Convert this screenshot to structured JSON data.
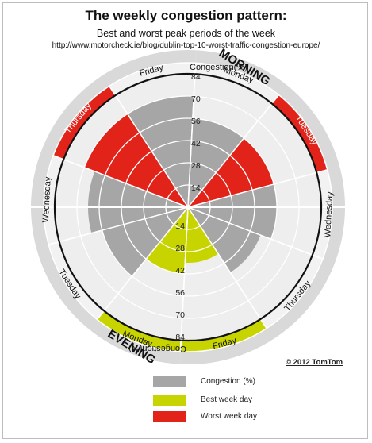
{
  "header": {
    "title": "The weekly congestion pattern:",
    "subtitle": "Best and worst peak periods of the week",
    "source": "http://www.motorcheck.ie/blog/dublin-top-10-worst-traffic-congestion-europe/"
  },
  "copyright": "© 2012 TomTom",
  "legend": [
    {
      "label": "Congestion (%)",
      "color": "#a6a6a6"
    },
    {
      "label": "Best week day",
      "color": "#c8d400"
    },
    {
      "label": "Worst week day",
      "color": "#e2231a"
    }
  ],
  "chart_data": {
    "type": "radial-bar",
    "ring_ticks": [
      14,
      28,
      42,
      56,
      70,
      84
    ],
    "rmax": 84,
    "axis_title": "Congestion(%)",
    "colors": {
      "grey": "#a6a6a6",
      "best": "#c8d400",
      "worst": "#e2231a",
      "frame": "#d9d9d9"
    },
    "series": [
      {
        "name": "MORNING",
        "days": [
          {
            "label": "Monday",
            "value": 56,
            "highlight": "none"
          },
          {
            "label": "Tuesday",
            "value": 56,
            "highlight": "worst"
          },
          {
            "label": "Wednesday",
            "value": 56,
            "highlight": "none"
          },
          {
            "label": "Thursday",
            "value": 49,
            "highlight": "none"
          },
          {
            "label": "Friday",
            "value": 35,
            "highlight": "best"
          }
        ]
      },
      {
        "name": "EVENING",
        "days": [
          {
            "label": "Monday",
            "value": 42,
            "highlight": "best"
          },
          {
            "label": "Tuesday",
            "value": 56,
            "highlight": "none"
          },
          {
            "label": "Wednesday",
            "value": 63,
            "highlight": "none"
          },
          {
            "label": "Thursday",
            "value": 70,
            "highlight": "worst"
          },
          {
            "label": "Friday",
            "value": 70,
            "highlight": "none"
          }
        ]
      }
    ]
  }
}
